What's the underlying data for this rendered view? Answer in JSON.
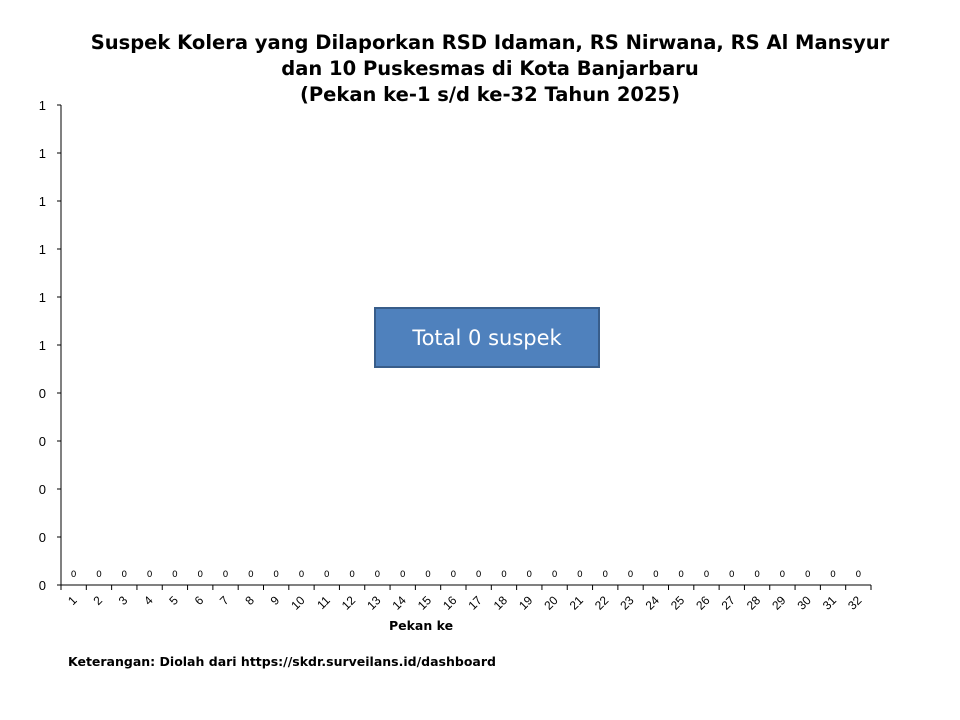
{
  "chart_data": {
    "type": "bar",
    "title": [
      "Suspek Kolera yang Dilaporkan RSD Idaman, RS Nirwana, RS Al Mansyur",
      "dan 10 Puskesmas di Kota Banjarbaru",
      "(Pekan ke-1 s/d ke-32 Tahun 2025)"
    ],
    "xlabel": "Pekan ke",
    "ylabel": "",
    "categories": [
      "1",
      "2",
      "3",
      "4",
      "5",
      "6",
      "7",
      "8",
      "9",
      "10",
      "11",
      "12",
      "13",
      "14",
      "15",
      "16",
      "17",
      "18",
      "19",
      "20",
      "21",
      "22",
      "23",
      "24",
      "25",
      "26",
      "27",
      "28",
      "29",
      "30",
      "31",
      "32"
    ],
    "values": [
      0,
      0,
      0,
      0,
      0,
      0,
      0,
      0,
      0,
      0,
      0,
      0,
      0,
      0,
      0,
      0,
      0,
      0,
      0,
      0,
      0,
      0,
      0,
      0,
      0,
      0,
      0,
      0,
      0,
      0,
      0,
      0
    ],
    "data_labels": [
      "0",
      "0",
      "0",
      "0",
      "0",
      "0",
      "0",
      "0",
      "0",
      "0",
      "0",
      "0",
      "0",
      "0",
      "0",
      "0",
      "0",
      "0",
      "0",
      "0",
      "0",
      "0",
      "0",
      "0",
      "0",
      "0",
      "0",
      "0",
      "0",
      "0",
      "0",
      "0"
    ],
    "ylim": [
      0,
      1
    ],
    "y_ticks": [
      0,
      0.1,
      0.2,
      0.3,
      0.4,
      0.5,
      0.6,
      0.7,
      0.8,
      0.9,
      1
    ],
    "y_tick_labels": [
      "0",
      "0",
      "0",
      "0",
      "0",
      "1",
      "1",
      "1",
      "1",
      "1",
      "1"
    ],
    "grid": false,
    "legend": "none"
  },
  "annotation": {
    "text": "Total 0 suspek",
    "fill": "#4f81bd",
    "border": "#385d8a"
  },
  "footnote": "Keterangan: Diolah dari https://skdr.surveilans.id/dashboard"
}
